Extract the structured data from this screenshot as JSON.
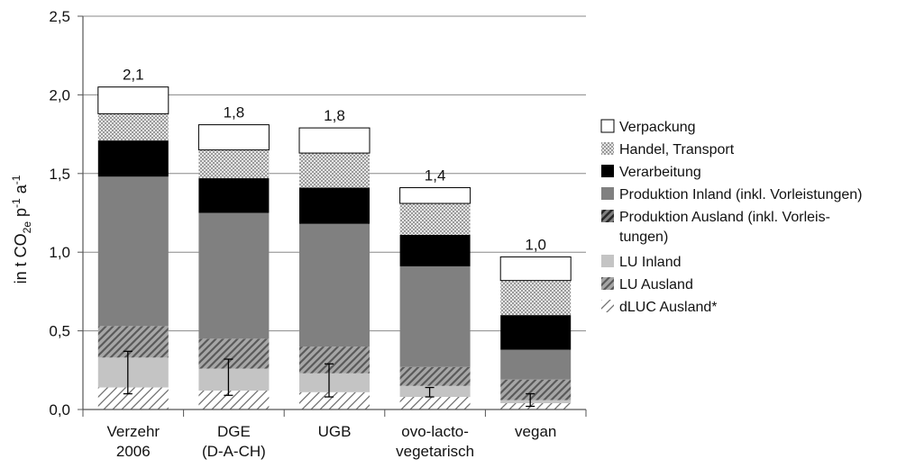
{
  "chart_data": {
    "type": "bar",
    "stacked": true,
    "ylabel_main": "in t CO",
    "ylabel_sub": "2e",
    "ylabel_rest": " p",
    "ylabel_sup1": "-1",
    "ylabel_mid": " a",
    "ylabel_sup2": "-1",
    "ylim": [
      0,
      2.5
    ],
    "yticks": [
      {
        "value": 0.0,
        "label": "0,0"
      },
      {
        "value": 0.5,
        "label": "0,5"
      },
      {
        "value": 1.0,
        "label": "1,0"
      },
      {
        "value": 1.5,
        "label": "1,5"
      },
      {
        "value": 2.0,
        "label": "2,0"
      },
      {
        "value": 2.5,
        "label": "2,5"
      }
    ],
    "grid": true,
    "legend_position": "right",
    "categories": [
      {
        "line1": "Verzehr",
        "line2": "2006"
      },
      {
        "line1": "DGE",
        "line2": "(D-A-CH)"
      },
      {
        "line1": "UGB",
        "line2": ""
      },
      {
        "line1": "ovo-lacto-",
        "line2": "vegetarisch"
      },
      {
        "line1": "vegan",
        "line2": ""
      }
    ],
    "totals": [
      "2,1",
      "1,8",
      "1,8",
      "1,4",
      "1,0"
    ],
    "series": [
      {
        "name": "dLUC Ausland*",
        "style": "hatch-light",
        "values": [
          0.14,
          0.12,
          0.11,
          0.08,
          0.04
        ]
      },
      {
        "name": "LU Inland",
        "style": "light-gray",
        "values": [
          0.19,
          0.14,
          0.12,
          0.07,
          0.02
        ]
      },
      {
        "name": "LU Ausland",
        "style": "hatch-gray",
        "values": [
          0.2,
          0.19,
          0.17,
          0.12,
          0.13
        ]
      },
      {
        "name": "Produktion Inland (inkl. Vorleistungen)",
        "style": "mid-gray",
        "values": [
          0.95,
          0.8,
          0.78,
          0.64,
          0.19
        ]
      },
      {
        "name": "Produktion Ausland (inkl. Vorleistungen)",
        "style": "hatch-dark",
        "values": [
          0.0,
          0.0,
          0.0,
          0.0,
          0.0
        ]
      },
      {
        "name": "Verarbeitung",
        "style": "black",
        "values": [
          0.23,
          0.22,
          0.23,
          0.2,
          0.22
        ]
      },
      {
        "name": "Handel, Transport",
        "style": "dotted",
        "values": [
          0.17,
          0.18,
          0.22,
          0.2,
          0.22
        ]
      },
      {
        "name": "Verpackung",
        "style": "white",
        "values": [
          0.17,
          0.16,
          0.16,
          0.1,
          0.15
        ]
      }
    ],
    "error_bars": [
      {
        "low": 0.1,
        "high": 0.37
      },
      {
        "low": 0.09,
        "high": 0.32
      },
      {
        "low": 0.08,
        "high": 0.29
      },
      {
        "low": 0.08,
        "high": 0.14
      },
      {
        "low": 0.02,
        "high": 0.1
      }
    ],
    "legend": [
      {
        "style": "white",
        "lines": [
          "Verpackung"
        ]
      },
      {
        "style": "dotted",
        "lines": [
          "Handel, Transport"
        ]
      },
      {
        "style": "black",
        "lines": [
          "Verarbeitung"
        ]
      },
      {
        "style": "mid-gray",
        "lines": [
          "Produktion Inland (inkl. Vorleistungen)"
        ]
      },
      {
        "style": "hatch-dark",
        "lines": [
          "Produktion Ausland (inkl. Vorleis-",
          "tungen)"
        ]
      },
      {
        "style": "light-gray",
        "lines": [
          "LU Inland"
        ]
      },
      {
        "style": "hatch-gray",
        "lines": [
          "LU Ausland"
        ]
      },
      {
        "style": "hatch-light",
        "lines": [
          "dLUC Ausland*"
        ]
      }
    ],
    "colors": {
      "white": "#ffffff",
      "dotted": "#d8d8d8",
      "black": "#000000",
      "mid-gray": "#808080",
      "light-gray": "#c4c4c4",
      "hatch-dark": "#3a3a3a",
      "hatch-gray": "#6f6f6f",
      "hatch-light": "#707070",
      "grid": "#888888",
      "axis": "#555555"
    }
  }
}
